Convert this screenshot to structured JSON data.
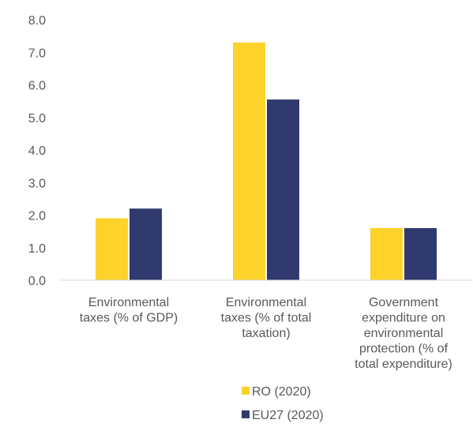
{
  "chart_data": {
    "type": "bar",
    "title": "",
    "xlabel": "",
    "ylabel": "",
    "categories": [
      [
        "Environmental",
        "taxes (% of GDP)"
      ],
      [
        "Environmental",
        "taxes (% of total",
        "taxation)"
      ],
      [
        "Government",
        "expenditure on",
        "environmental",
        "protection (% of",
        "total expenditure)"
      ]
    ],
    "series": [
      {
        "name": "RO (2020)",
        "color": "#FDD22A",
        "values": [
          1.9,
          7.3,
          1.6
        ]
      },
      {
        "name": "EU27 (2020)",
        "color": "#313A6E",
        "values": [
          2.2,
          5.55,
          1.6
        ]
      }
    ],
    "ylim": [
      0,
      8
    ],
    "yticks": [
      "0.0",
      "1.0",
      "2.0",
      "3.0",
      "4.0",
      "5.0",
      "6.0",
      "7.0",
      "8.0"
    ],
    "grid": false,
    "legend_position": "bottom"
  }
}
